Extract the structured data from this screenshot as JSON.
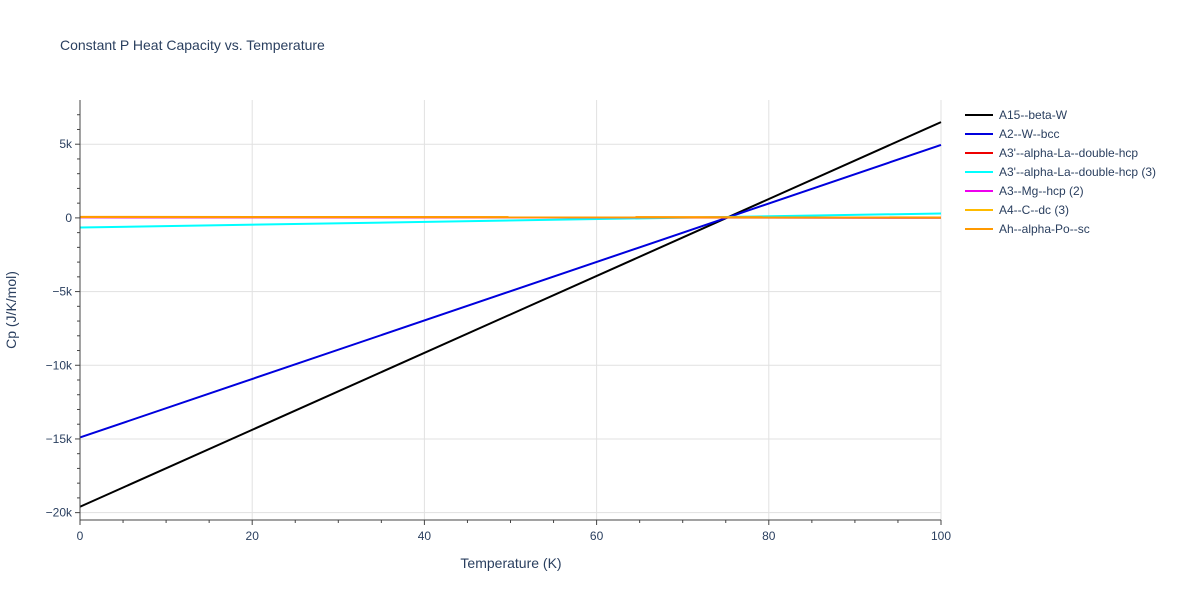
{
  "chart_data": {
    "type": "line",
    "title": "Constant P Heat Capacity vs. Temperature",
    "xlabel": "Temperature (K)",
    "ylabel": "Cp (J/K/mol)",
    "xlim": [
      0,
      100
    ],
    "ylim": [
      -20500,
      8000
    ],
    "x_ticks": [
      0,
      20,
      40,
      60,
      80,
      100
    ],
    "x_tick_labels": [
      "0",
      "20",
      "40",
      "60",
      "80",
      "100"
    ],
    "y_ticks": [
      -20000,
      -15000,
      -10000,
      -5000,
      0,
      5000
    ],
    "y_tick_labels": [
      "−20k",
      "−15k",
      "−10k",
      "−5k",
      "0",
      "5k"
    ],
    "grid": true,
    "legend_position": "right",
    "series": [
      {
        "name": "A15--beta-W",
        "color": "#000000",
        "x": [
          0,
          100
        ],
        "y": [
          -19600,
          6500
        ]
      },
      {
        "name": "A2--W--bcc",
        "color": "#0000dd",
        "x": [
          0,
          100
        ],
        "y": [
          -14900,
          4950
        ]
      },
      {
        "name": "A3'--alpha-La--double-hcp",
        "color": "#ee0000",
        "x": [
          0,
          100
        ],
        "y": [
          50,
          10
        ]
      },
      {
        "name": "A3'--alpha-La--double-hcp (3)",
        "color": "#00ffff",
        "x": [
          0,
          100
        ],
        "y": [
          -650,
          300
        ]
      },
      {
        "name": "A3--Mg--hcp (2)",
        "color": "#ee00ee",
        "x": [
          0,
          100
        ],
        "y": [
          40,
          20
        ]
      },
      {
        "name": "A4--C--dc (3)",
        "color": "#ffbb00",
        "x": [
          0,
          100
        ],
        "y": [
          60,
          30
        ]
      },
      {
        "name": "Ah--alpha-Po--sc",
        "color": "#ff9900",
        "x": [
          0,
          100
        ],
        "y": [
          70,
          40
        ]
      }
    ]
  }
}
